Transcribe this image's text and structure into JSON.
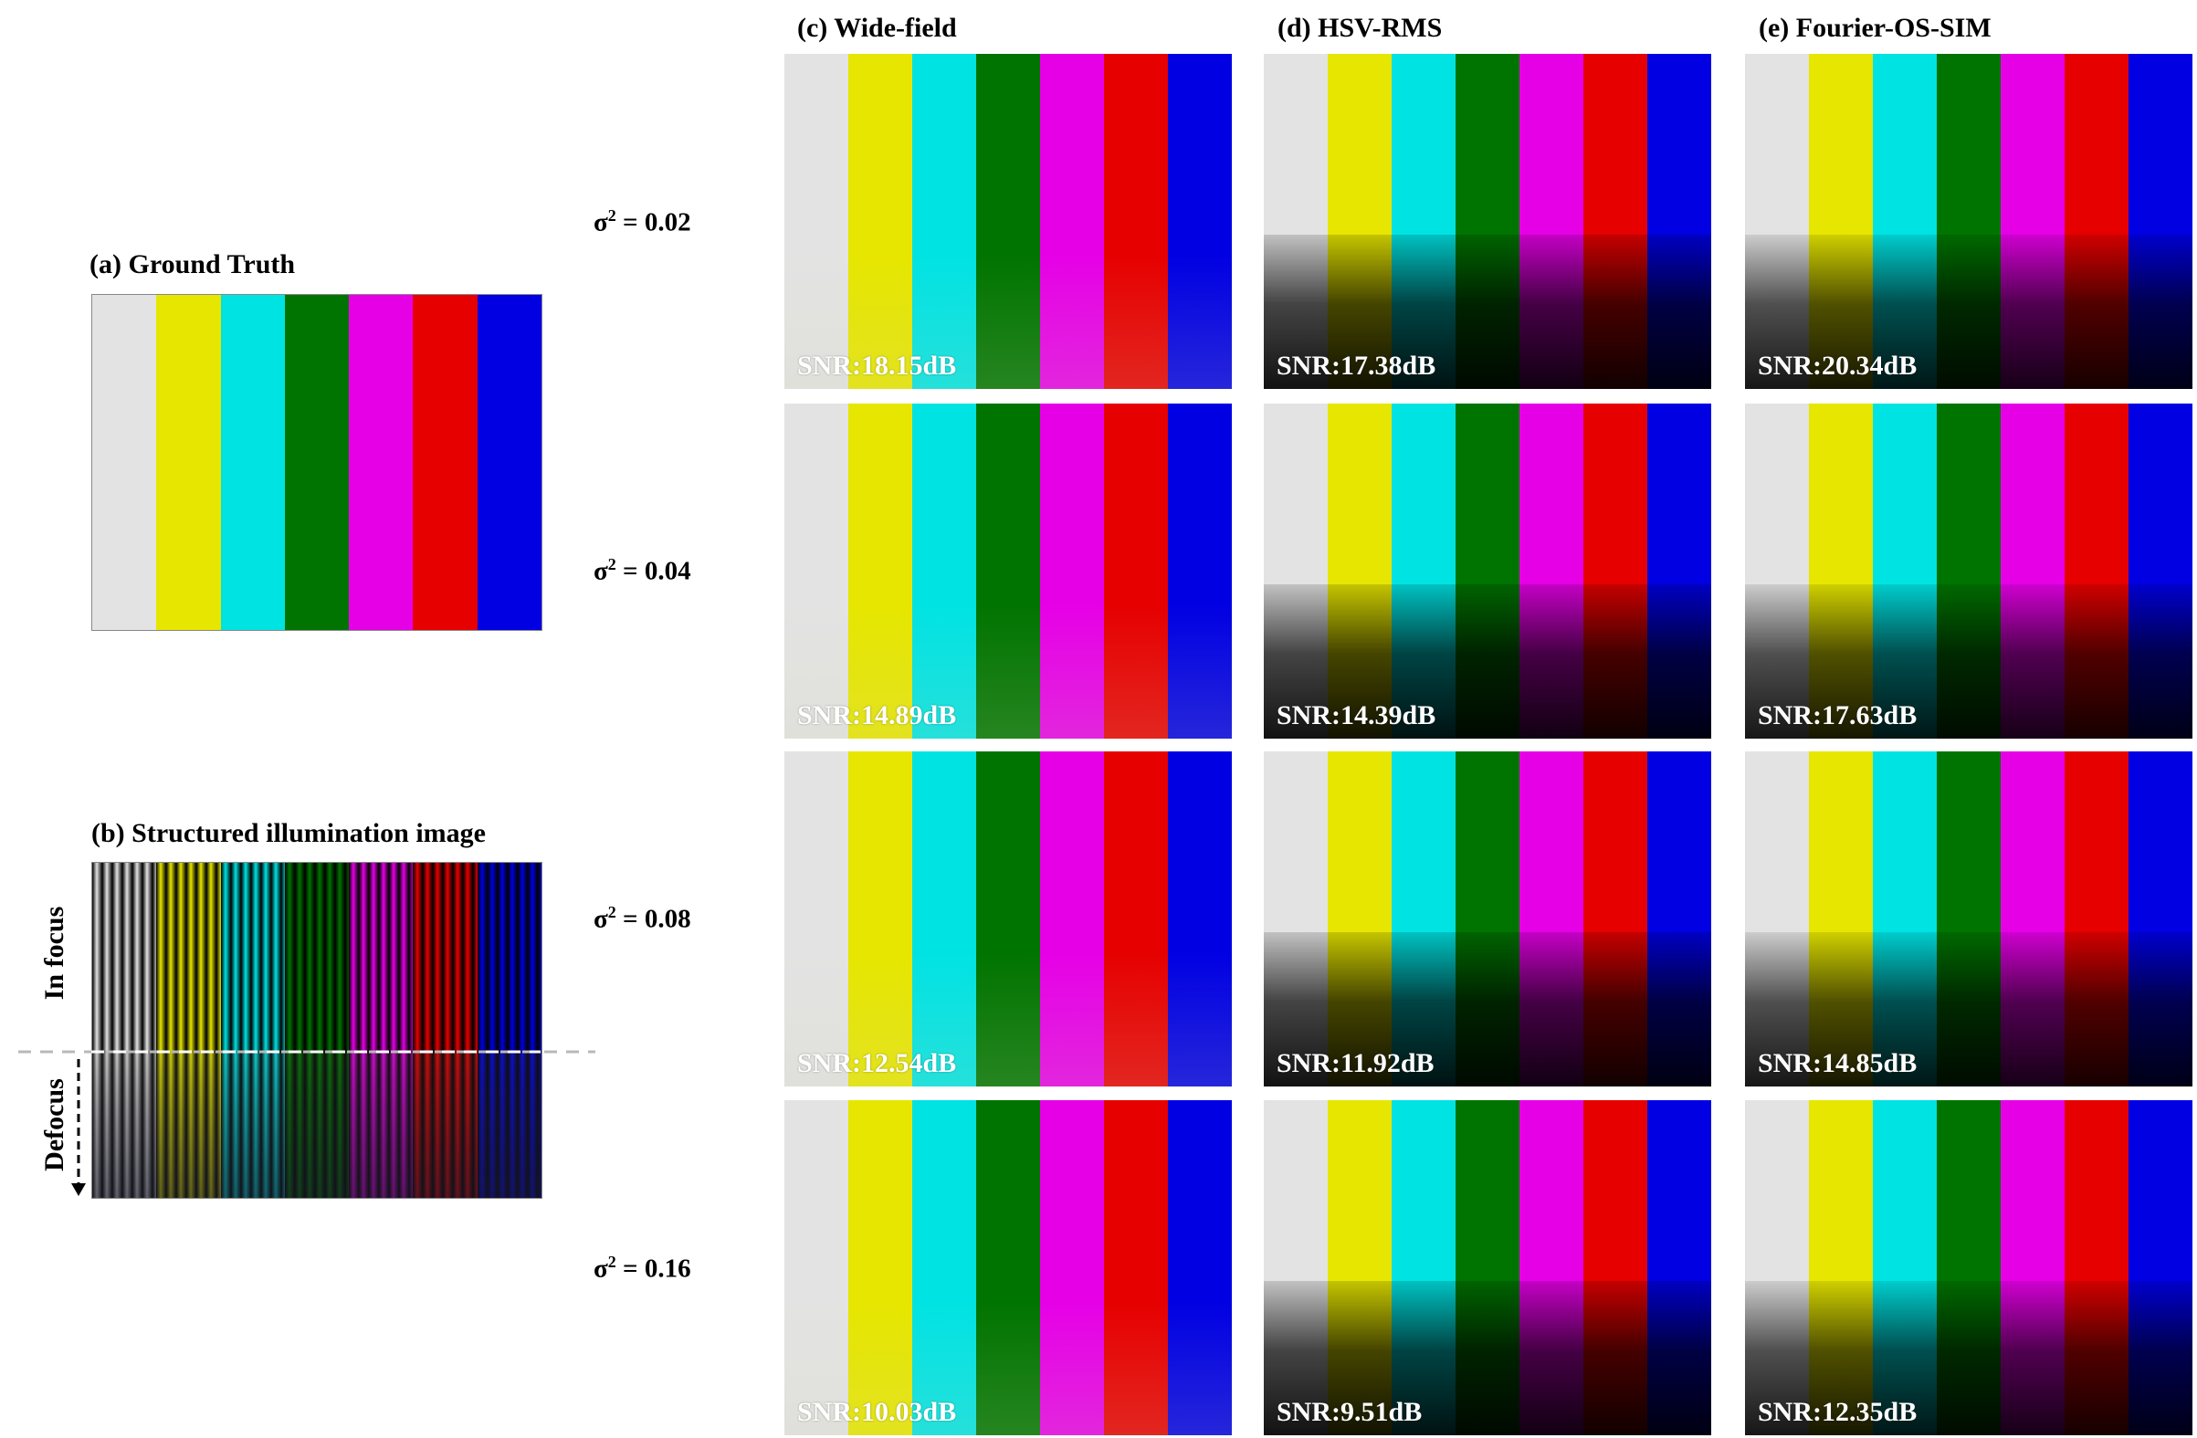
{
  "gt_title": "(a) Ground Truth",
  "si_title": "(b) Structured illumination image",
  "in_focus": "In focus",
  "defocus": "Defocus",
  "bar_colors": [
    "#e3e3e3",
    "#e6e600",
    "#00e3e3",
    "#007400",
    "#e600e6",
    "#e60000",
    "#0000e3"
  ],
  "col_titles": [
    "(c) Wide-field",
    "(d) HSV-RMS",
    "(e) Fourier-OS-SIM"
  ],
  "row_labels": [
    "0.02",
    "0.04",
    "0.08",
    "0.16"
  ],
  "sigma_symbol": "σ",
  "sigma_exp": "2",
  "equals": " = ",
  "snr": [
    [
      "SNR:18.15dB",
      "SNR:17.38dB",
      "SNR:20.34dB"
    ],
    [
      "SNR:14.89dB",
      "SNR:14.39dB",
      "SNR:17.63dB"
    ],
    [
      "SNR:12.54dB",
      "SNR:11.92dB",
      "SNR:14.85dB"
    ],
    [
      "SNR:10.03dB",
      "SNR:9.51dB",
      "SNR:12.35dB"
    ]
  ]
}
